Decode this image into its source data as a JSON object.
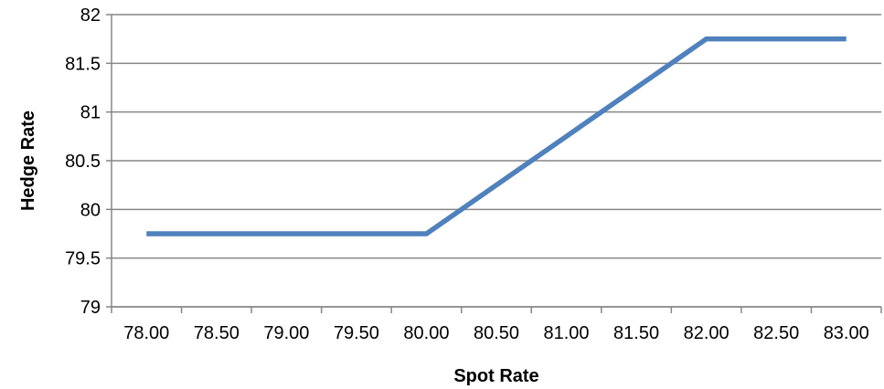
{
  "chart_data": {
    "type": "line",
    "title": "",
    "xlabel": "Spot Rate",
    "ylabel": "Hedge Rate",
    "x_tick_labels": [
      "78.00",
      "78.50",
      "79.00",
      "79.50",
      "80.00",
      "80.50",
      "81.00",
      "81.50",
      "82.00",
      "82.50",
      "83.00"
    ],
    "y_tick_labels": [
      "79",
      "79.5",
      "80",
      "80.5",
      "81",
      "81.5",
      "82"
    ],
    "ylim": [
      79,
      82
    ],
    "grid": "horizontal",
    "legend": "none",
    "series": [
      {
        "x": [
          78.0,
          78.5,
          79.0,
          79.5,
          80.0,
          80.5,
          81.0,
          81.5,
          82.0,
          82.5,
          83.0
        ],
        "y": [
          79.75,
          79.75,
          79.75,
          79.75,
          79.75,
          80.25,
          80.75,
          81.25,
          81.75,
          81.75,
          81.75
        ],
        "color": "#4f81bd"
      }
    ]
  }
}
